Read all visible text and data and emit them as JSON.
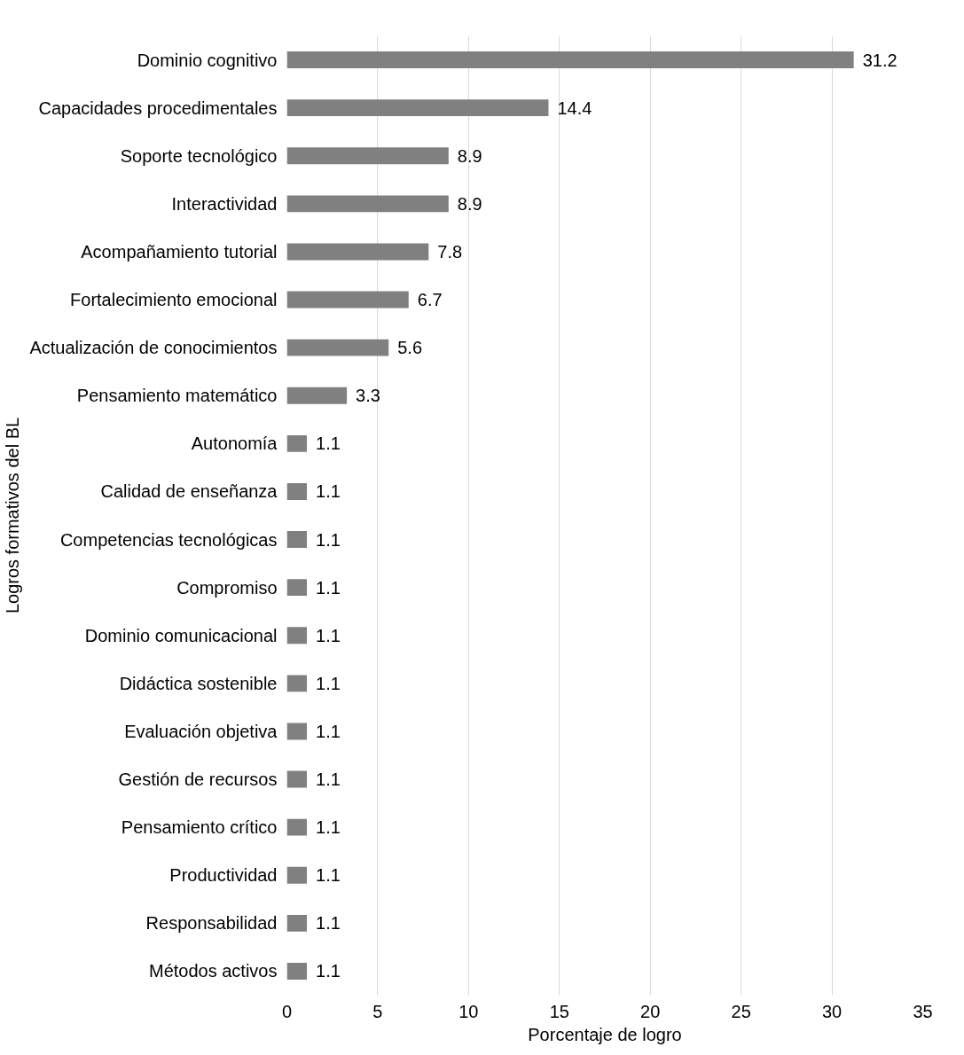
{
  "chart_data": {
    "type": "bar",
    "orientation": "horizontal",
    "xlabel": "Porcentaje de logro",
    "ylabel": "Logros formativos del BL",
    "categories": [
      "Dominio cognitivo",
      "Capacidades procedimentales",
      "Soporte tecnológico",
      "Interactividad",
      "Acompañamiento tutorial",
      "Fortalecimiento emocional",
      "Actualización de conocimientos",
      "Pensamiento matemático",
      "Autonomía",
      "Calidad de enseñanza",
      "Competencias tecnológicas",
      "Compromiso",
      "Dominio comunicacional",
      "Didáctica sostenible",
      "Evaluación objetiva",
      "Gestión de recursos",
      "Pensamiento crítico",
      "Productividad",
      "Responsabilidad",
      "Métodos activos"
    ],
    "values": [
      31.2,
      14.4,
      8.9,
      8.9,
      7.8,
      6.7,
      5.6,
      3.3,
      1.1,
      1.1,
      1.1,
      1.1,
      1.1,
      1.1,
      1.1,
      1.1,
      1.1,
      1.1,
      1.1,
      1.1
    ],
    "color": "#808080",
    "xlim": [
      0,
      35
    ],
    "xticks": [
      0,
      5,
      10,
      15,
      20,
      25,
      30,
      35
    ],
    "grid": "x",
    "data_labels": true
  }
}
